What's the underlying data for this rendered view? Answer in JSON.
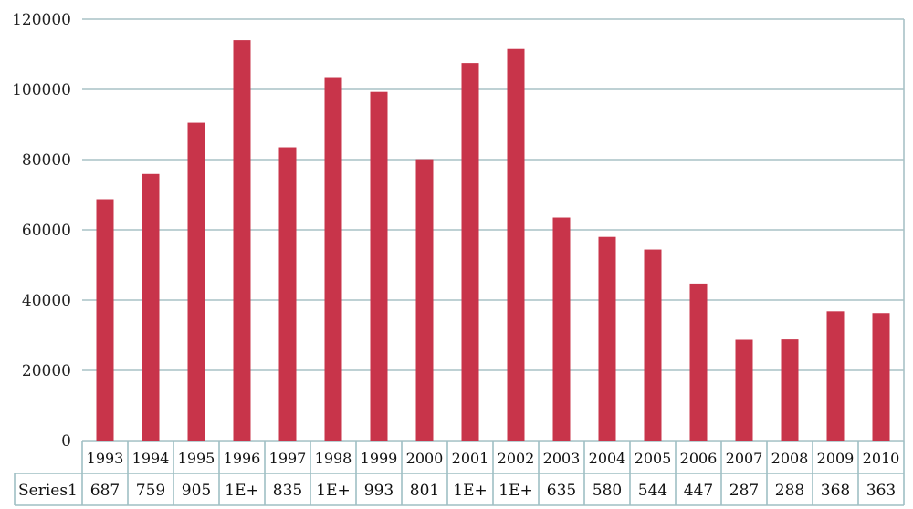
{
  "chart_data": {
    "type": "bar",
    "categories": [
      "1993",
      "1994",
      "1995",
      "1996",
      "1997",
      "1998",
      "1999",
      "2000",
      "2001",
      "2002",
      "2003",
      "2004",
      "2005",
      "2006",
      "2007",
      "2008",
      "2009",
      "2010"
    ],
    "series": [
      {
        "name": "Series1",
        "values": [
          68700,
          75900,
          90500,
          114000,
          83500,
          103500,
          99300,
          80100,
          107500,
          111500,
          63500,
          58000,
          54400,
          44700,
          28700,
          28800,
          36800,
          36300
        ],
        "table_labels": [
          "687",
          "759",
          "905",
          "1E+",
          "835",
          "1E+",
          "993",
          "801",
          "1E+",
          "1E+",
          "635",
          "580",
          "544",
          "447",
          "287",
          "288",
          "368",
          "363"
        ]
      }
    ],
    "ylim": [
      0,
      120000
    ],
    "yticks": [
      "0",
      "20000",
      "40000",
      "60000",
      "80000",
      "100000",
      "120000"
    ],
    "grid": true,
    "legend": "none",
    "data_table": true,
    "bar_color": "#c8344a",
    "grid_color": "#a9c2c6"
  }
}
